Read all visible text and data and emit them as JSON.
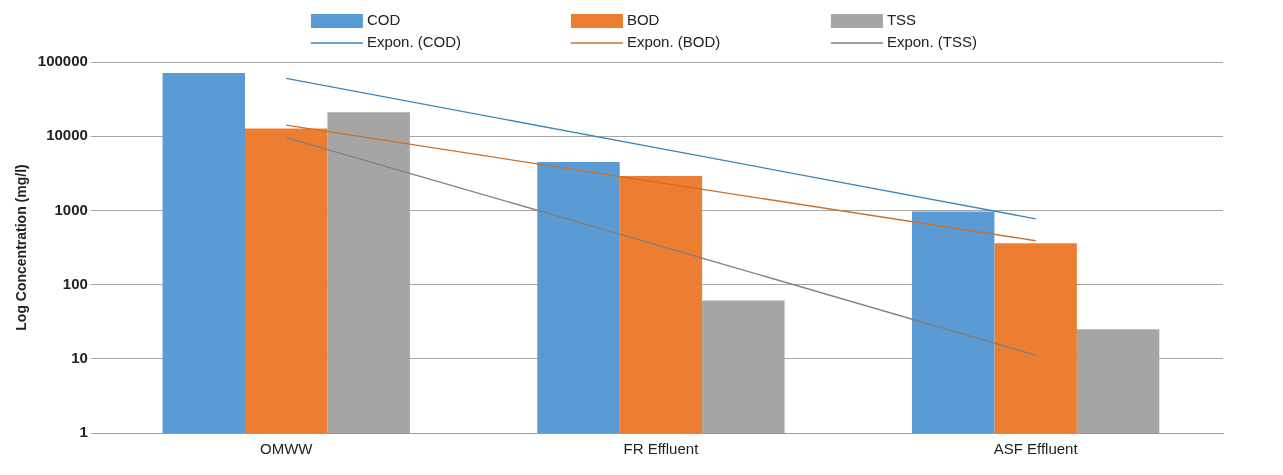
{
  "chart_data": {
    "type": "bar",
    "ylabel": "Log Concentration (mg/l)",
    "categories": [
      "OMWW",
      "FR Effluent",
      "ASF Effluent"
    ],
    "series": [
      {
        "name": "COD",
        "color": "#5b9bd5",
        "values": [
          71000,
          4500,
          970
        ]
      },
      {
        "name": "BOD",
        "color": "#ed7d31",
        "values": [
          12700,
          2900,
          360
        ]
      },
      {
        "name": "TSS",
        "color": "#a5a5a5",
        "values": [
          21000,
          61,
          25
        ]
      },
      {
        "name": "Expon. (COD)",
        "type": "line",
        "color": "#3a86b8",
        "values": [
          60000,
          6800,
          770
        ]
      },
      {
        "name": "Expon. (BOD)",
        "type": "line",
        "color": "#c8722e",
        "values": [
          14100,
          2350,
          390
        ]
      },
      {
        "name": "Expon. (TSS)",
        "type": "line",
        "color": "#7f7f7f",
        "values": [
          9600,
          330,
          11.2
        ]
      }
    ],
    "ylim": [
      1,
      100000
    ],
    "yticks": [
      1,
      10,
      100,
      1000,
      10000,
      100000
    ],
    "log": "y",
    "grid": "y",
    "legend": "top",
    "marker": "none",
    "line_style": "solid"
  }
}
